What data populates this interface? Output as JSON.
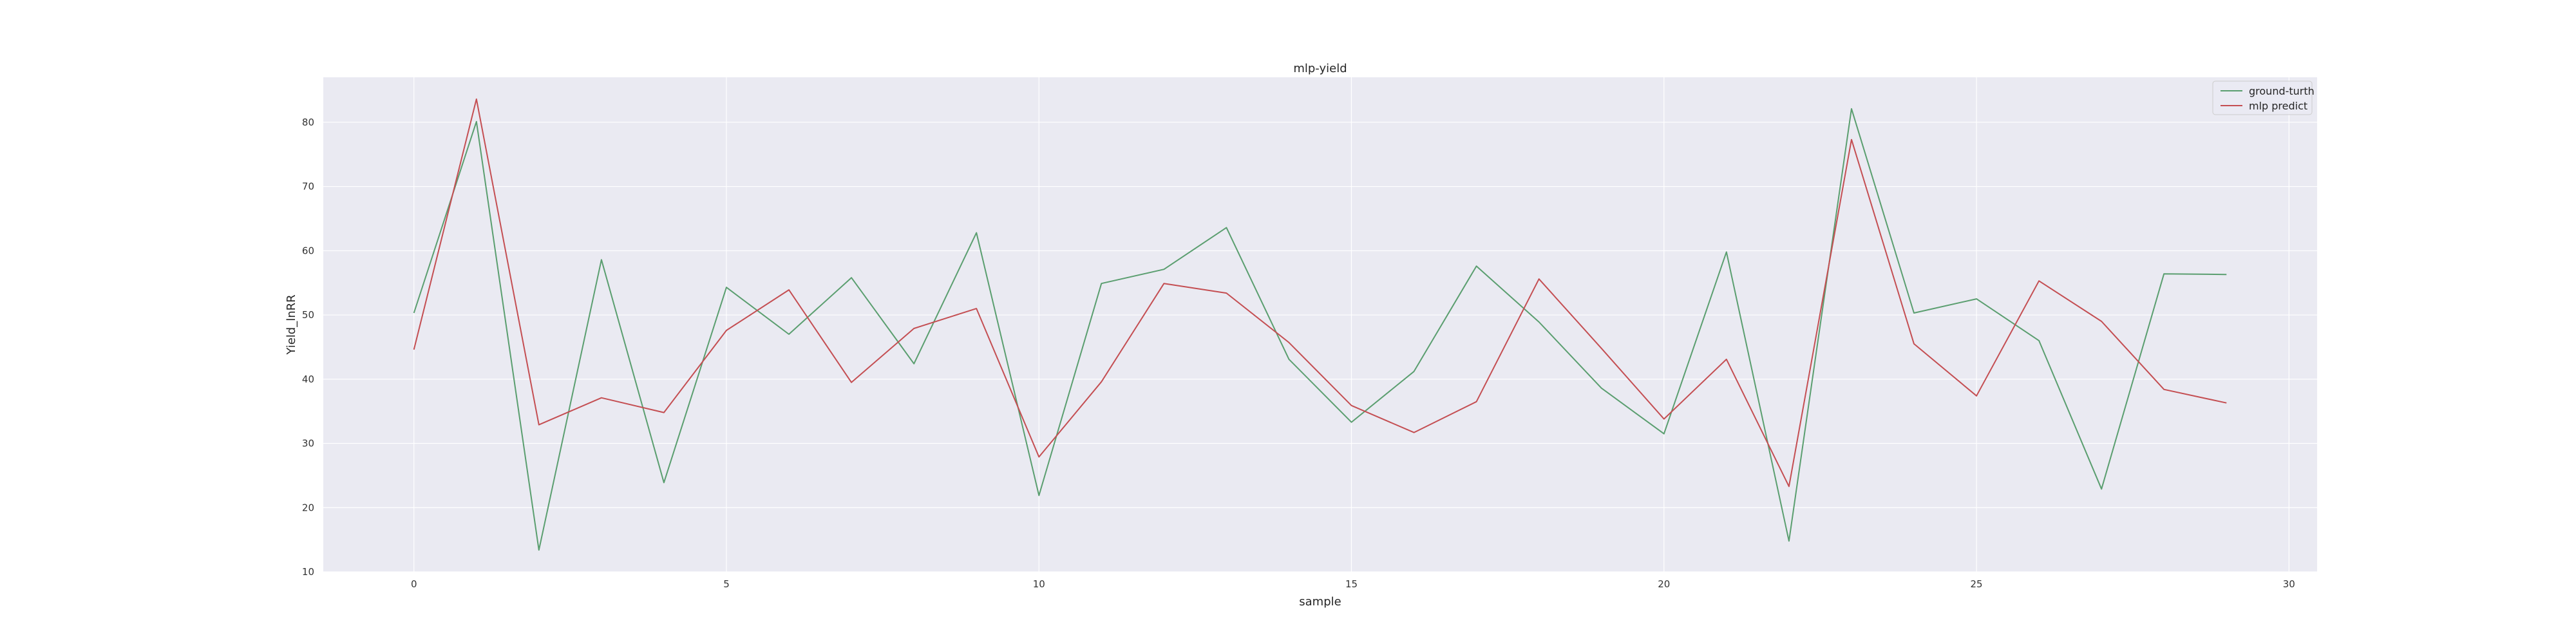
{
  "chart_data": {
    "type": "line",
    "title": "mlp-yield",
    "xlabel": "sample",
    "ylabel": "Yield_lnRR",
    "xlim": [
      -1.45,
      30.45
    ],
    "ylim": [
      10,
      87
    ],
    "xticks": [
      0,
      5,
      10,
      15,
      20,
      25,
      30
    ],
    "yticks": [
      10,
      20,
      30,
      40,
      50,
      60,
      70,
      80
    ],
    "grid": true,
    "legend_position": "top-right",
    "series": [
      {
        "name": "ground-turth",
        "color": "#5a9e6f",
        "x": [
          0,
          1,
          2,
          3,
          4,
          5,
          6,
          7,
          8,
          9,
          10,
          11,
          12,
          13,
          14,
          15,
          16,
          17,
          18,
          19,
          20,
          21,
          22,
          23,
          24,
          25,
          26,
          27,
          28,
          29
        ],
        "values": [
          50.3,
          80.1,
          13.4,
          58.6,
          23.9,
          54.3,
          47.0,
          55.8,
          42.4,
          62.8,
          21.9,
          54.9,
          57.1,
          63.6,
          43.1,
          33.3,
          41.2,
          57.6,
          48.9,
          38.6,
          31.5,
          59.8,
          14.8,
          82.1,
          50.3,
          52.5,
          46.0,
          22.9,
          56.4,
          56.3
        ]
      },
      {
        "name": "mlp predict",
        "color": "#c44e52",
        "x": [
          0,
          1,
          2,
          3,
          4,
          5,
          6,
          7,
          8,
          9,
          10,
          11,
          12,
          13,
          14,
          15,
          16,
          17,
          18,
          19,
          20,
          21,
          22,
          23,
          24,
          25,
          26,
          27,
          28,
          29
        ],
        "values": [
          44.6,
          83.6,
          32.9,
          37.1,
          34.8,
          47.6,
          53.9,
          39.5,
          47.9,
          51.0,
          27.9,
          39.6,
          54.9,
          53.4,
          45.7,
          35.9,
          31.7,
          36.5,
          55.6,
          44.8,
          33.8,
          43.1,
          23.3,
          77.3,
          45.5,
          37.4,
          55.3,
          49.0,
          38.4,
          36.3
        ]
      }
    ]
  }
}
